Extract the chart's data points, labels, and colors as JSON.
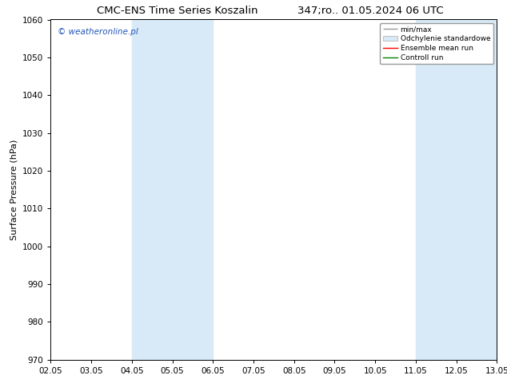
{
  "title_left": "CMC-ENS Time Series Koszalin",
  "title_right": "347;ro.. 01.05.2024 06 UTC",
  "ylabel": "Surface Pressure (hPa)",
  "ylim": [
    970,
    1060
  ],
  "yticks": [
    970,
    980,
    990,
    1000,
    1010,
    1020,
    1030,
    1040,
    1050,
    1060
  ],
  "xtick_labels": [
    "02.05",
    "03.05",
    "04.05",
    "05.05",
    "06.05",
    "07.05",
    "08.05",
    "09.05",
    "10.05",
    "11.05",
    "12.05",
    "13.05"
  ],
  "watermark": "© weatheronline.pl",
  "bg_color": "#ffffff",
  "plot_bg_color": "#ffffff",
  "shade_bands": [
    {
      "xmin": 2,
      "xmax": 4,
      "color": "#d8eaf8"
    },
    {
      "xmin": 9,
      "xmax": 11,
      "color": "#d8eaf8"
    }
  ],
  "legend_items": [
    {
      "label": "min/max",
      "color": "#aaaaaa",
      "lw": 1.2
    },
    {
      "label": "Odchylenie standardowe",
      "facecolor": "#d8eaf8",
      "edgecolor": "#aaaaaa"
    },
    {
      "label": "Ensemble mean run",
      "color": "#ff0000",
      "lw": 1.2
    },
    {
      "label": "Controll run",
      "color": "#008000",
      "lw": 1.2
    }
  ],
  "title_fontsize": 9.5,
  "axis_label_fontsize": 8,
  "tick_fontsize": 7.5,
  "watermark_fontsize": 7.5,
  "legend_fontsize": 6.5
}
